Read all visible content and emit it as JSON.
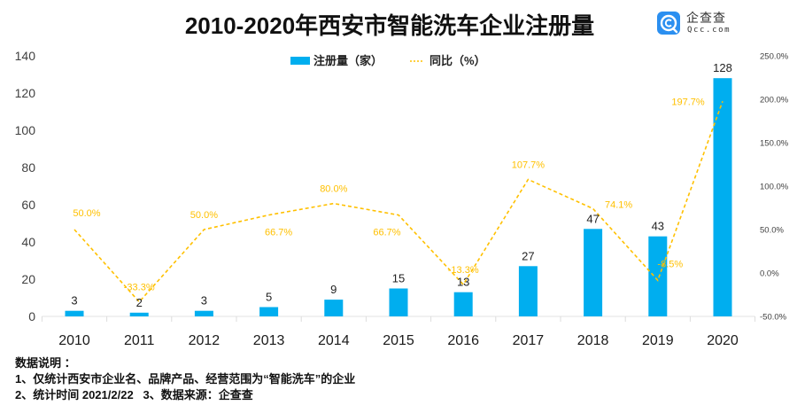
{
  "header": {
    "title": "2010-2020年西安市智能洗车企业注册量",
    "logo": {
      "icon": "qcc-logo-icon",
      "name": "企查查",
      "domain": "Qcc.com"
    }
  },
  "chart_data": {
    "type": "bar",
    "title": "2010-2020年西安市智能洗车企业注册量",
    "xlabel": "",
    "ylabel": "",
    "categories": [
      "2010",
      "2011",
      "2012",
      "2013",
      "2014",
      "2015",
      "2016",
      "2017",
      "2018",
      "2019",
      "2020"
    ],
    "series": [
      {
        "name": "注册量（家）",
        "type": "bar",
        "axis": "left",
        "color": "#00AEEF",
        "values": [
          3,
          2,
          3,
          5,
          9,
          15,
          13,
          27,
          47,
          43,
          128
        ],
        "labels": [
          "3",
          "2",
          "3",
          "5",
          "9",
          "15",
          "13",
          "27",
          "47",
          "43",
          "128"
        ]
      },
      {
        "name": "同比（%）",
        "type": "line",
        "style": "dashed",
        "axis": "right",
        "color": "#FFC000",
        "values": [
          50.0,
          -33.3,
          50.0,
          66.7,
          80.0,
          66.7,
          -13.3,
          107.7,
          74.1,
          -8.5,
          197.7
        ],
        "labels": [
          "50.0%",
          "-33.3%",
          "50.0%",
          "66.7%",
          "80.0%",
          "66.7%",
          "-13.3%",
          "107.7%",
          "74.1%",
          "-8.5%",
          "197.7%"
        ],
        "label_positions": [
          "above-right",
          "above",
          "above",
          "below-right",
          "above",
          "below-left",
          "above",
          "above",
          "right",
          "above-right",
          "left"
        ]
      }
    ],
    "y_left": {
      "range": [
        0,
        140
      ],
      "ticks": [
        0,
        20,
        40,
        60,
        80,
        100,
        120,
        140
      ],
      "tick_labels": [
        "0",
        "20",
        "40",
        "60",
        "80",
        "100",
        "120",
        "140"
      ]
    },
    "y_right": {
      "range": [
        -50,
        250
      ],
      "ticks": [
        -50,
        0,
        50,
        100,
        150,
        200,
        250
      ],
      "tick_labels": [
        "-50.0%",
        "0.0%",
        "50.0%",
        "100.0%",
        "150.0%",
        "200.0%",
        "250.0%"
      ]
    },
    "grid": false,
    "legend": {
      "position": "top-center",
      "items": [
        {
          "label": "注册量（家）",
          "marker": "bar",
          "color": "#00AEEF"
        },
        {
          "label": "同比（%）",
          "marker": "dashed-line",
          "color": "#FFC000"
        }
      ]
    }
  },
  "notes": {
    "heading": "数据说明 ：",
    "lines": [
      "1、仅统计西安市企业名、品牌产品、经营范围为“智能洗车”的企业",
      "2、统计时间 2021/2/22   3、数据来源：企查查"
    ]
  }
}
